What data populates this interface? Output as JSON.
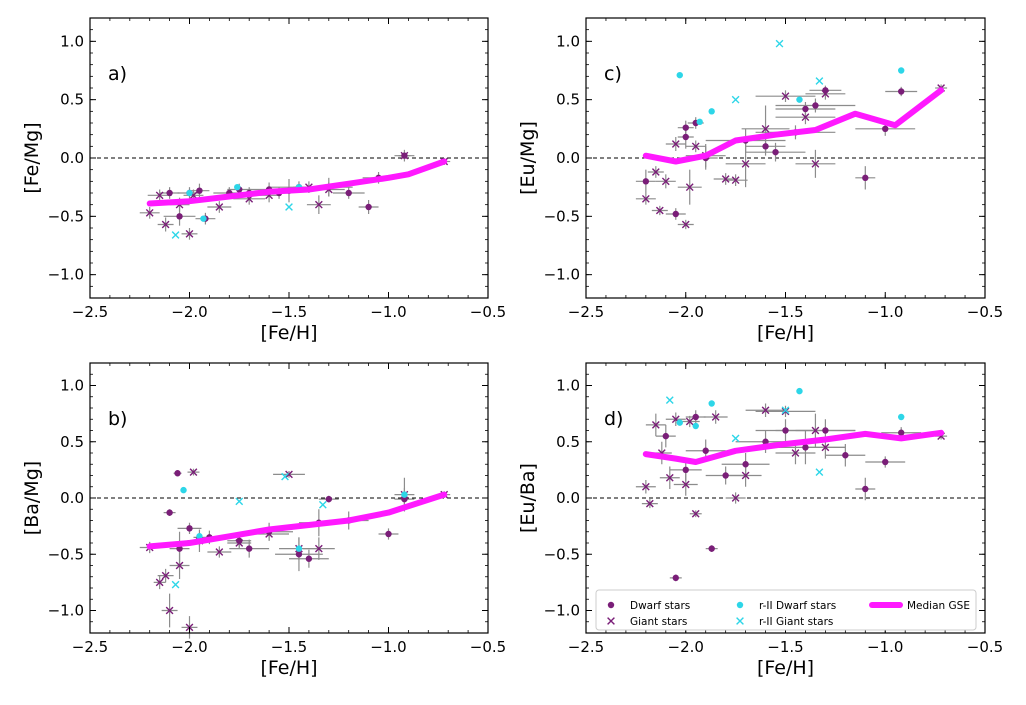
{
  "colors": {
    "dwarf": "#7a1e78",
    "giant": "#7a1e78",
    "r2dwarf": "#2dd6e8",
    "r2giant": "#2dd6e8",
    "median": "#ff19ff",
    "errorbar": "#8c8c8c",
    "zero_line": "#000000"
  },
  "legend": {
    "dwarf": "Dwarf stars",
    "giant": "Giant stars",
    "r2dwarf": "r-II Dwarf stars",
    "r2giant": "r-II Giant stars",
    "median": "Median GSE"
  },
  "chart_data": [
    {
      "id": "a",
      "type": "scatter",
      "panel_label": "a)",
      "xlabel": "[Fe/H]",
      "ylabel": "[Fe/Mg]",
      "xlim": [
        -2.5,
        -0.5
      ],
      "ylim": [
        -1.2,
        1.2
      ],
      "xticks": [
        -2.5,
        -2.0,
        -1.5,
        -1.0,
        -0.5
      ],
      "yticks": [
        -1.0,
        -0.5,
        0.0,
        0.5,
        1.0
      ],
      "xtick_labels": [
        "−2.5",
        "−2.0",
        "−1.5",
        "−1.0",
        "−0.5"
      ],
      "ytick_labels": [
        "−1.0",
        "−0.5",
        "0.0",
        "0.5",
        "1.0"
      ],
      "median": {
        "x": [
          -2.2,
          -2.0,
          -1.8,
          -1.6,
          -1.4,
          -1.2,
          -1.0,
          -0.9,
          -0.72
        ],
        "y": [
          -0.39,
          -0.37,
          -0.33,
          -0.29,
          -0.27,
          -0.22,
          -0.17,
          -0.14,
          -0.03
        ]
      },
      "dwarf": {
        "x": [
          -2.1,
          -2.05,
          -2.0,
          -1.95,
          -1.92,
          -1.8,
          -1.75,
          -1.7,
          -1.6,
          -1.55,
          -1.5,
          -1.45,
          -1.3,
          -1.2,
          -1.1,
          -1.05,
          -0.92
        ],
        "y": [
          -0.3,
          -0.5,
          -0.3,
          -0.28,
          -0.52,
          -0.3,
          -0.27,
          -0.3,
          -0.27,
          -0.3,
          -0.28,
          -0.25,
          -0.25,
          -0.3,
          -0.42,
          -0.17,
          0.02
        ],
        "xerr": [
          0.05,
          0.08,
          0.06,
          0.05,
          0.05,
          0.08,
          0.06,
          0.06,
          0.1,
          0.06,
          0.12,
          0.15,
          0.12,
          0.08,
          0.05,
          0.08,
          0.03
        ],
        "yerr": [
          0.05,
          0.08,
          0.05,
          0.06,
          0.05,
          0.05,
          0.05,
          0.05,
          0.06,
          0.05,
          0.1,
          0.05,
          0.08,
          0.05,
          0.06,
          0.05,
          0.03
        ]
      },
      "giant": {
        "x": [
          -2.2,
          -2.15,
          -2.12,
          -2.05,
          -2.0,
          -1.98,
          -1.85,
          -1.7,
          -1.6,
          -1.4,
          -1.35,
          -1.3,
          -0.92,
          -0.72
        ],
        "y": [
          -0.47,
          -0.32,
          -0.57,
          -0.4,
          -0.65,
          -0.32,
          -0.42,
          -0.35,
          -0.32,
          -0.25,
          -0.4,
          -0.27,
          0.02,
          -0.03
        ],
        "xerr": [
          0.05,
          0.06,
          0.04,
          0.05,
          0.04,
          0.05,
          0.06,
          0.08,
          0.06,
          0.08,
          0.06,
          0.08,
          0.05,
          0.03
        ],
        "yerr": [
          0.05,
          0.05,
          0.06,
          0.06,
          0.05,
          0.05,
          0.05,
          0.05,
          0.06,
          0.05,
          0.08,
          0.06,
          0.05,
          0.03
        ]
      },
      "r2dwarf": {
        "x": [
          -2.0,
          -1.93,
          -1.76,
          -1.45
        ],
        "y": [
          -0.3,
          -0.52,
          -0.25,
          -0.25
        ]
      },
      "r2giant": {
        "x": [
          -2.07,
          -1.5
        ],
        "y": [
          -0.66,
          -0.42
        ]
      }
    },
    {
      "id": "b",
      "type": "scatter",
      "panel_label": "b)",
      "xlabel": "[Fe/H]",
      "ylabel": "[Ba/Mg]",
      "xlim": [
        -2.5,
        -0.5
      ],
      "ylim": [
        -1.2,
        1.2
      ],
      "xticks": [
        -2.5,
        -2.0,
        -1.5,
        -1.0,
        -0.5
      ],
      "yticks": [
        -1.0,
        -0.5,
        0.0,
        0.5,
        1.0
      ],
      "xtick_labels": [
        "−2.5",
        "−2.0",
        "−1.5",
        "−1.0",
        "−0.5"
      ],
      "ytick_labels": [
        "−1.0",
        "−0.5",
        "0.0",
        "0.5",
        "1.0"
      ],
      "median": {
        "x": [
          -2.2,
          -2.0,
          -1.8,
          -1.6,
          -1.4,
          -1.2,
          -1.0,
          -0.72
        ],
        "y": [
          -0.43,
          -0.4,
          -0.34,
          -0.28,
          -0.24,
          -0.2,
          -0.13,
          0.03
        ]
      },
      "dwarf": {
        "x": [
          -2.06,
          -2.1,
          -2.05,
          -2.0,
          -1.95,
          -1.9,
          -1.75,
          -1.7,
          -1.6,
          -1.45,
          -1.4,
          -1.35,
          -1.3,
          -1.2,
          -1.0,
          -0.92
        ],
        "y": [
          0.22,
          -0.13,
          -0.45,
          -0.27,
          -0.38,
          -0.35,
          -0.38,
          -0.45,
          -0.3,
          -0.5,
          -0.54,
          -0.22,
          -0.01,
          -0.2,
          -0.32,
          -0.01
        ],
        "xerr": [
          0.02,
          0.03,
          0.05,
          0.06,
          0.06,
          0.08,
          0.06,
          0.1,
          0.12,
          0.12,
          0.1,
          0.1,
          0.05,
          0.1,
          0.05,
          0.05
        ],
        "yerr": [
          0.02,
          0.03,
          0.15,
          0.05,
          0.1,
          0.06,
          0.05,
          0.08,
          0.08,
          0.15,
          0.08,
          0.12,
          0.03,
          0.08,
          0.05,
          0.1
        ]
      },
      "giant": {
        "x": [
          -2.2,
          -2.15,
          -2.12,
          -2.1,
          -2.05,
          -2.0,
          -1.98,
          -1.95,
          -1.85,
          -1.75,
          -1.6,
          -1.5,
          -1.45,
          -1.35,
          -0.92,
          -0.72
        ],
        "y": [
          -0.44,
          -0.75,
          -0.69,
          -1.0,
          -0.6,
          -1.15,
          0.23,
          -0.38,
          -0.48,
          -0.4,
          -0.32,
          0.21,
          -0.45,
          -0.45,
          0.03,
          0.03
        ],
        "xerr": [
          0.05,
          0.03,
          0.04,
          0.04,
          0.05,
          0.04,
          0.03,
          0.06,
          0.06,
          0.06,
          0.1,
          0.08,
          0.1,
          0.08,
          0.05,
          0.03
        ],
        "yerr": [
          0.05,
          0.06,
          0.06,
          0.15,
          0.12,
          0.1,
          0.03,
          0.05,
          0.05,
          0.05,
          0.06,
          0.03,
          0.1,
          0.1,
          0.15,
          0.03
        ]
      },
      "r2dwarf": {
        "x": [
          -2.03,
          -1.95,
          -1.45,
          -0.92
        ],
        "y": [
          0.07,
          -0.34,
          -0.45,
          0.03
        ]
      },
      "r2giant": {
        "x": [
          -2.07,
          -1.75,
          -1.52,
          -1.33
        ],
        "y": [
          -0.77,
          -0.03,
          0.19,
          -0.06
        ]
      }
    },
    {
      "id": "c",
      "type": "scatter",
      "panel_label": "c)",
      "xlabel": "[Fe/H]",
      "ylabel": "[Eu/Mg]",
      "xlim": [
        -2.5,
        -0.5
      ],
      "ylim": [
        -1.2,
        1.2
      ],
      "xticks": [
        -2.5,
        -2.0,
        -1.5,
        -1.0,
        -0.5
      ],
      "yticks": [
        -1.0,
        -0.5,
        0.0,
        0.5,
        1.0
      ],
      "xtick_labels": [
        "−2.5",
        "−2.0",
        "−1.5",
        "−1.0",
        "−0.5"
      ],
      "ytick_labels": [
        "−1.0",
        "−0.5",
        "0.0",
        "0.5",
        "1.0"
      ],
      "median": {
        "x": [
          -2.2,
          -2.05,
          -1.9,
          -1.75,
          -1.55,
          -1.35,
          -1.15,
          -0.95,
          -0.72
        ],
        "y": [
          0.02,
          -0.03,
          0.02,
          0.15,
          0.2,
          0.24,
          0.38,
          0.28,
          0.58
        ]
      },
      "dwarf": {
        "x": [
          -2.2,
          -2.05,
          -2.0,
          -2.0,
          -1.95,
          -1.9,
          -1.7,
          -1.6,
          -1.55,
          -1.45,
          -1.4,
          -1.35,
          -1.3,
          -1.1,
          -1.0,
          -0.92
        ],
        "y": [
          -0.2,
          -0.48,
          0.18,
          0.26,
          0.3,
          0.0,
          0.15,
          0.1,
          0.05,
          0.22,
          0.42,
          0.45,
          0.58,
          -0.17,
          0.25,
          0.57
        ],
        "xerr": [
          0.05,
          0.05,
          0.04,
          0.04,
          0.04,
          0.06,
          0.2,
          0.1,
          0.15,
          0.2,
          0.15,
          0.2,
          0.08,
          0.05,
          0.15,
          0.08
        ],
        "yerr": [
          0.1,
          0.05,
          0.1,
          0.06,
          0.05,
          0.1,
          0.1,
          0.08,
          0.08,
          0.06,
          0.06,
          0.06,
          0.04,
          0.1,
          0.06,
          0.04
        ]
      },
      "giant": {
        "x": [
          -2.2,
          -2.15,
          -2.13,
          -2.1,
          -2.05,
          -2.0,
          -1.98,
          -1.95,
          -1.9,
          -1.8,
          -1.75,
          -1.7,
          -1.6,
          -1.5,
          -1.4,
          -1.35,
          -1.3,
          -0.72
        ],
        "y": [
          -0.35,
          -0.12,
          -0.45,
          -0.2,
          0.12,
          -0.57,
          -0.25,
          0.1,
          0.02,
          -0.18,
          -0.19,
          -0.05,
          0.25,
          0.53,
          0.35,
          -0.05,
          0.55,
          0.6
        ],
        "xerr": [
          0.05,
          0.04,
          0.04,
          0.05,
          0.05,
          0.04,
          0.06,
          0.05,
          0.1,
          0.06,
          0.06,
          0.1,
          0.12,
          0.15,
          0.15,
          0.1,
          0.1,
          0.03
        ],
        "yerr": [
          0.05,
          0.05,
          0.04,
          0.06,
          0.06,
          0.04,
          0.15,
          0.05,
          0.1,
          0.05,
          0.05,
          0.2,
          0.2,
          0.05,
          0.06,
          0.12,
          0.05,
          0.03
        ]
      },
      "r2dwarf": {
        "x": [
          -2.03,
          -1.93,
          -1.87,
          -1.43,
          -0.92
        ],
        "y": [
          0.71,
          0.31,
          0.4,
          0.5,
          0.75
        ]
      },
      "r2giant": {
        "x": [
          -1.53,
          -1.33,
          -1.75
        ],
        "y": [
          0.98,
          0.66,
          0.5
        ]
      }
    },
    {
      "id": "d",
      "type": "scatter",
      "panel_label": "d)",
      "xlabel": "[Fe/H]",
      "ylabel": "[Eu/Ba]",
      "xlim": [
        -2.5,
        -0.5
      ],
      "ylim": [
        -1.2,
        1.2
      ],
      "xticks": [
        -2.5,
        -2.0,
        -1.5,
        -1.0,
        -0.5
      ],
      "yticks": [
        -1.0,
        -0.5,
        0.0,
        0.5,
        1.0
      ],
      "xtick_labels": [
        "−2.5",
        "−2.0",
        "−1.5",
        "−1.0",
        "−0.5"
      ],
      "ytick_labels": [
        "−1.0",
        "−0.5",
        "0.0",
        "0.5",
        "1.0"
      ],
      "median": {
        "x": [
          -2.2,
          -2.05,
          -1.95,
          -1.75,
          -1.5,
          -1.3,
          -1.1,
          -0.92,
          -0.72
        ],
        "y": [
          0.39,
          0.35,
          0.32,
          0.42,
          0.48,
          0.52,
          0.57,
          0.53,
          0.58
        ]
      },
      "dwarf": {
        "x": [
          -2.05,
          -1.95,
          -1.87,
          -2.0,
          -1.9,
          -1.8,
          -1.7,
          -1.5,
          -1.4,
          -1.3,
          -1.2,
          -1.1,
          -1.0,
          -0.92,
          -2.1,
          -1.6
        ],
        "y": [
          -0.71,
          0.72,
          -0.45,
          0.25,
          0.42,
          0.2,
          0.3,
          0.6,
          0.45,
          0.6,
          0.38,
          0.08,
          0.32,
          0.58,
          0.55,
          0.5
        ],
        "xerr": [
          0.03,
          0.05,
          0.03,
          0.08,
          0.1,
          0.1,
          0.12,
          0.15,
          0.2,
          0.15,
          0.1,
          0.05,
          0.1,
          0.1,
          0.05,
          0.15
        ],
        "yerr": [
          0.03,
          0.06,
          0.03,
          0.1,
          0.1,
          0.08,
          0.1,
          0.1,
          0.15,
          0.1,
          0.1,
          0.1,
          0.05,
          0.05,
          0.1,
          0.1
        ]
      },
      "giant": {
        "x": [
          -2.2,
          -2.18,
          -2.15,
          -2.12,
          -2.08,
          -2.05,
          -2.0,
          -1.98,
          -1.95,
          -1.85,
          -1.75,
          -1.7,
          -1.6,
          -1.5,
          -1.45,
          -1.35,
          -1.3,
          -0.72
        ],
        "y": [
          0.1,
          -0.05,
          0.65,
          0.4,
          0.18,
          0.7,
          0.12,
          0.68,
          -0.14,
          0.72,
          0.0,
          0.2,
          0.78,
          0.77,
          0.4,
          0.6,
          0.45,
          0.55
        ],
        "xerr": [
          0.05,
          0.04,
          0.05,
          0.05,
          0.05,
          0.05,
          0.06,
          0.05,
          0.03,
          0.06,
          0.05,
          0.08,
          0.1,
          0.15,
          0.1,
          0.2,
          0.1,
          0.03
        ],
        "yerr": [
          0.06,
          0.04,
          0.1,
          0.1,
          0.1,
          0.06,
          0.1,
          0.05,
          0.03,
          0.06,
          0.05,
          0.1,
          0.06,
          0.05,
          0.1,
          0.15,
          0.1,
          0.03
        ]
      },
      "r2dwarf": {
        "x": [
          -1.87,
          -1.95,
          -1.43,
          -0.92,
          -2.03
        ],
        "y": [
          0.84,
          0.64,
          0.95,
          0.72,
          0.67
        ]
      },
      "r2giant": {
        "x": [
          -2.08,
          -1.75,
          -1.33,
          -1.5
        ],
        "y": [
          0.87,
          0.53,
          0.23,
          0.78
        ]
      }
    }
  ]
}
